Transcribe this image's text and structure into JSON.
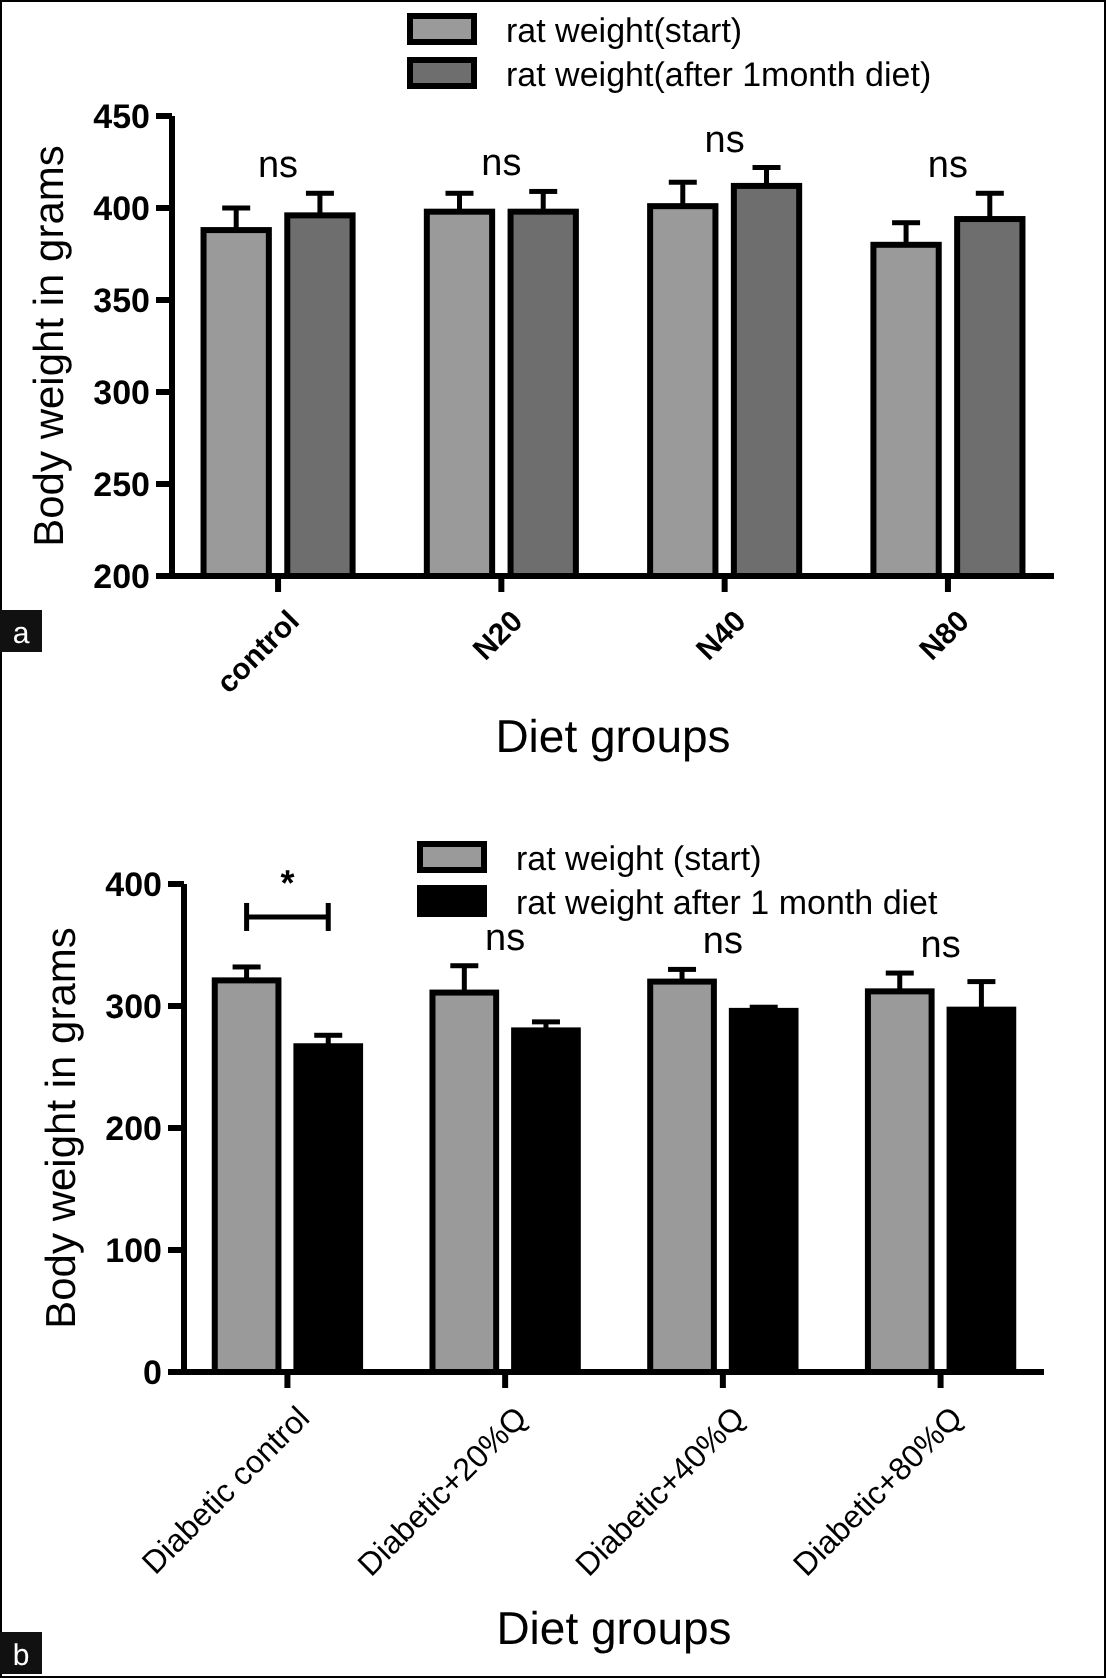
{
  "chart_data": [
    {
      "type": "bar",
      "ylabel": "Body weight in grams",
      "xlabel": "Diet groups",
      "categories": [
        "control",
        "N20",
        "N40",
        "N80"
      ],
      "series": [
        {
          "name": "rat weight(start)",
          "color": "#9a9a9a",
          "values": [
            388,
            398,
            401,
            380
          ],
          "errors": [
            12,
            10,
            13,
            12
          ]
        },
        {
          "name": "rat weight(after 1month diet)",
          "color": "#6e6e6e",
          "values": [
            396,
            398,
            412,
            394
          ],
          "errors": [
            12,
            11,
            10,
            14
          ]
        }
      ],
      "ylim": [
        200,
        450
      ],
      "yticks": [
        200,
        250,
        300,
        350,
        400,
        450
      ],
      "legend": "top right",
      "grid": false,
      "annotations": [
        "ns",
        "ns",
        "ns",
        "ns",
        "a"
      ]
    },
    {
      "type": "bar",
      "ylabel": "Body weight in grams",
      "xlabel": "Diet groups",
      "categories": [
        "Diabetic control",
        "Diabetic+20%Q",
        "Diabetic+40%Q",
        "Diabetic+80%Q"
      ],
      "series": [
        {
          "name": "rat weight (start)",
          "color": "#9a9a9a",
          "values": [
            321,
            311,
            320,
            312
          ],
          "errors": [
            11,
            22,
            10,
            15
          ]
        },
        {
          "name": "rat weight after 1 month diet",
          "color": "#000000",
          "values": [
            267,
            280,
            296,
            297
          ],
          "errors": [
            9,
            7,
            3,
            23
          ]
        }
      ],
      "ylim": [
        0,
        400
      ],
      "yticks": [
        0,
        100,
        200,
        300,
        400
      ],
      "legend": "top right",
      "grid": false,
      "annotations": [
        "*",
        "ns",
        "ns",
        "ns",
        "b"
      ]
    }
  ]
}
